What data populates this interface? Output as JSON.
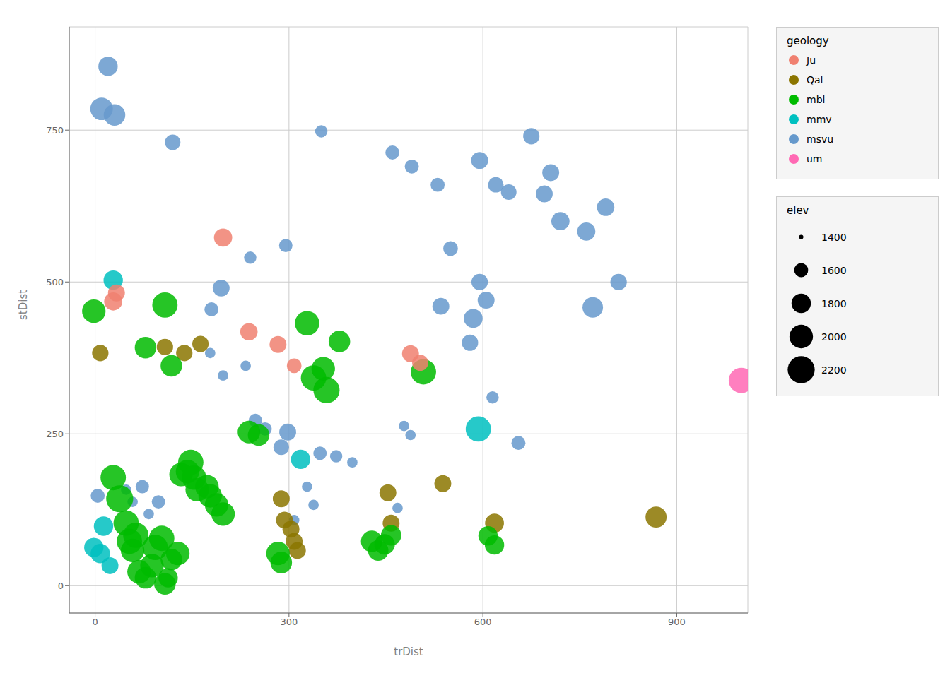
{
  "chart_data": {
    "type": "scatter",
    "xlabel": "trDist",
    "ylabel": "stDist",
    "xlim": [
      -40,
      1010
    ],
    "ylim": [
      -45,
      920
    ],
    "xticks": [
      0,
      300,
      600,
      900
    ],
    "yticks": [
      0,
      250,
      500,
      750
    ],
    "grid": true,
    "legend": "right",
    "legend_title": "geology",
    "legend_entries": [
      "Ju",
      "Qal",
      "mbl",
      "mmv",
      "msvu",
      "um"
    ],
    "size_legend": {
      "title": "elev",
      "levels": [
        1400,
        1600,
        1800,
        2000,
        2200
      ]
    },
    "elev_range": [
      1400,
      2200
    ],
    "series": [
      {
        "name": "msvu",
        "color": "#6699CC",
        "x": [
          20,
          10,
          30,
          120,
          350,
          460,
          490,
          530,
          595,
          620,
          640,
          675,
          695,
          705,
          720,
          760,
          790,
          810,
          770,
          595,
          605,
          585,
          580,
          550,
          535,
          615,
          655,
          295,
          240,
          195,
          180,
          178,
          198,
          233,
          248,
          263,
          298,
          288,
          348,
          373,
          398,
          328,
          338,
          308,
          48,
          58,
          73,
          83,
          98,
          4,
          478,
          488,
          468
        ],
        "y": [
          855,
          785,
          775,
          730,
          748,
          713,
          690,
          660,
          700,
          660,
          648,
          740,
          645,
          680,
          600,
          583,
          623,
          500,
          458,
          500,
          470,
          440,
          400,
          555,
          460,
          310,
          235,
          560,
          540,
          490,
          455,
          383,
          346,
          362,
          272,
          258,
          253,
          228,
          218,
          213,
          203,
          163,
          133,
          108,
          158,
          138,
          163,
          118,
          138,
          148,
          263,
          248,
          128
        ],
        "elev": [
          1800,
          1950,
          1900,
          1650,
          1550,
          1600,
          1600,
          1600,
          1700,
          1650,
          1650,
          1680,
          1700,
          1700,
          1750,
          1750,
          1720,
          1680,
          1850,
          1680,
          1700,
          1780,
          1680,
          1620,
          1700,
          1550,
          1600,
          1580,
          1550,
          1700,
          1600,
          1500,
          1500,
          1500,
          1580,
          1580,
          1700,
          1650,
          1580,
          1550,
          1500,
          1500,
          1500,
          1500,
          1500,
          1500,
          1580,
          1500,
          1580,
          1600,
          1500,
          1500,
          1500
        ]
      },
      {
        "name": "Qal",
        "color": "#8B7500",
        "x": [
          8,
          108,
          138,
          163,
          288,
          293,
          303,
          308,
          313,
          453,
          458,
          538,
          618,
          868
        ],
        "y": [
          383,
          393,
          383,
          398,
          143,
          108,
          93,
          73,
          58,
          153,
          103,
          168,
          103,
          113
        ],
        "elev": [
          1680,
          1680,
          1680,
          1680,
          1700,
          1700,
          1700,
          1700,
          1700,
          1700,
          1700,
          1700,
          1780,
          1880
        ]
      },
      {
        "name": "mmv",
        "color": "#00C0C0",
        "x": [
          -2,
          8,
          13,
          23,
          28,
          318,
          593
        ],
        "y": [
          63,
          53,
          98,
          33,
          503,
          208,
          258
        ],
        "elev": [
          1800,
          1800,
          1800,
          1700,
          1800,
          1800,
          2100
        ]
      },
      {
        "name": "mbl",
        "color": "#00BB00",
        "x": [
          108,
          -2,
          78,
          118,
          328,
          338,
          353,
          358,
          378,
          508,
          608,
          618,
          28,
          38,
          48,
          53,
          58,
          63,
          68,
          78,
          88,
          93,
          103,
          108,
          113,
          118,
          128,
          133,
          143,
          148,
          153,
          158,
          173,
          178,
          188,
          198,
          283,
          288,
          428,
          438,
          448,
          458,
          238,
          253
        ],
        "y": [
          462,
          452,
          392,
          362,
          432,
          342,
          357,
          322,
          402,
          352,
          82,
          67,
          178,
          143,
          103,
          73,
          58,
          83,
          23,
          13,
          33,
          63,
          78,
          3,
          13,
          43,
          53,
          183,
          188,
          203,
          178,
          158,
          163,
          148,
          133,
          118,
          53,
          38,
          73,
          58,
          68,
          83,
          253,
          248
        ],
        "elev": [
          2100,
          2000,
          1900,
          1900,
          2050,
          2100,
          2000,
          2150,
          1900,
          2100,
          1800,
          1800,
          2100,
          2200,
          2100,
          2100,
          2000,
          2100,
          2000,
          1900,
          2000,
          2100,
          2100,
          1900,
          1800,
          1900,
          2000,
          2000,
          2000,
          2100,
          2050,
          2000,
          2000,
          2000,
          2000,
          2000,
          2000,
          1900,
          1900,
          1850,
          1850,
          1850,
          1950,
          1900
        ]
      },
      {
        "name": "Ju",
        "color": "#F08070",
        "x": [
          28,
          33,
          198,
          238,
          283,
          308,
          488,
          503
        ],
        "y": [
          468,
          482,
          573,
          418,
          397,
          362,
          382,
          367
        ],
        "elev": [
          1750,
          1700,
          1750,
          1720,
          1700,
          1620,
          1700,
          1670
        ]
      },
      {
        "name": "um",
        "color": "#FF69B4",
        "x": [
          1000
        ],
        "y": [
          338
        ],
        "elev": [
          2100
        ]
      }
    ]
  }
}
